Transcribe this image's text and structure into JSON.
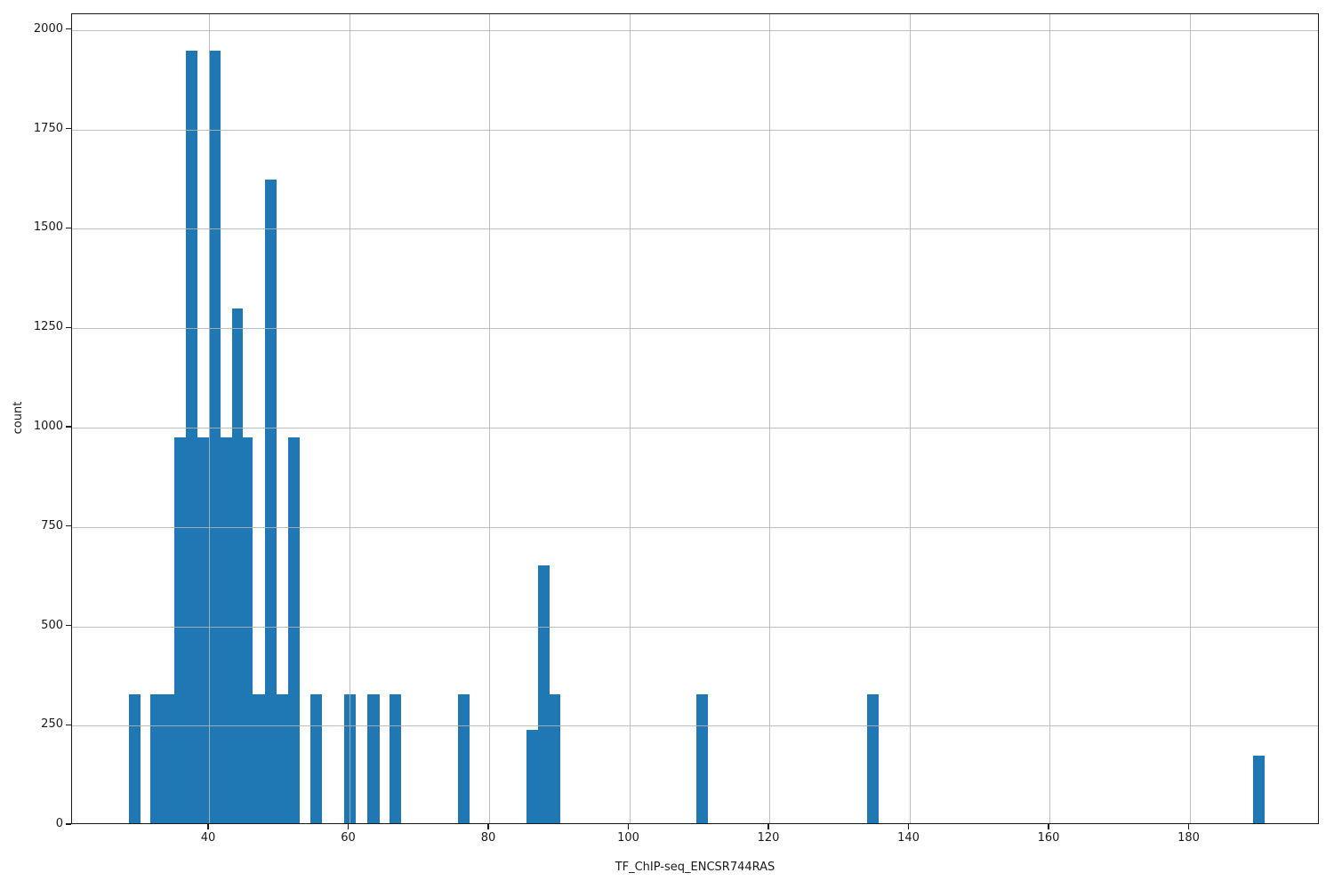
{
  "chart_data": {
    "type": "bar",
    "subtype": "histogram",
    "title": "",
    "xlabel": "TF_ChIP-seq_ENCSR744RAS",
    "ylabel": "count",
    "xlim": [
      20.44,
      198.6
    ],
    "ylim": [
      0,
      2040
    ],
    "x_ticks": [
      40,
      60,
      80,
      100,
      120,
      140,
      160,
      180
    ],
    "y_ticks": [
      0,
      250,
      500,
      750,
      1000,
      1250,
      1500,
      1750,
      2000
    ],
    "grid": true,
    "grid_over_bars": true,
    "legend": "none",
    "bar_color": "#1f77b4",
    "grid_color": "#b4b4b4",
    "axis_color": "#1a1a1a",
    "bars": [
      {
        "x0": 28.53,
        "x1": 30.17,
        "count": 324
      },
      {
        "x0": 31.58,
        "x1": 35.05,
        "count": 324
      },
      {
        "x0": 35.05,
        "x1": 36.7,
        "count": 972
      },
      {
        "x0": 36.7,
        "x1": 38.39,
        "count": 1944
      },
      {
        "x0": 38.39,
        "x1": 40.0,
        "count": 972
      },
      {
        "x0": 40.0,
        "x1": 41.63,
        "count": 1944
      },
      {
        "x0": 41.63,
        "x1": 43.24,
        "count": 972
      },
      {
        "x0": 43.24,
        "x1": 44.86,
        "count": 1296
      },
      {
        "x0": 44.86,
        "x1": 46.22,
        "count": 972
      },
      {
        "x0": 46.22,
        "x1": 47.99,
        "count": 324
      },
      {
        "x0": 47.99,
        "x1": 49.61,
        "count": 1620
      },
      {
        "x0": 49.61,
        "x1": 51.3,
        "count": 324
      },
      {
        "x0": 51.3,
        "x1": 52.93,
        "count": 972
      },
      {
        "x0": 54.48,
        "x1": 56.13,
        "count": 324
      },
      {
        "x0": 59.3,
        "x1": 60.95,
        "count": 324
      },
      {
        "x0": 62.6,
        "x1": 64.38,
        "count": 324
      },
      {
        "x0": 65.78,
        "x1": 67.43,
        "count": 324
      },
      {
        "x0": 75.56,
        "x1": 77.21,
        "count": 324
      },
      {
        "x0": 85.33,
        "x1": 86.98,
        "count": 236
      },
      {
        "x0": 86.98,
        "x1": 88.57,
        "count": 648
      },
      {
        "x0": 88.57,
        "x1": 90.16,
        "count": 324
      },
      {
        "x0": 109.59,
        "x1": 111.24,
        "count": 324
      },
      {
        "x0": 133.97,
        "x1": 135.62,
        "count": 324
      },
      {
        "x0": 189.08,
        "x1": 190.73,
        "count": 170
      }
    ]
  }
}
